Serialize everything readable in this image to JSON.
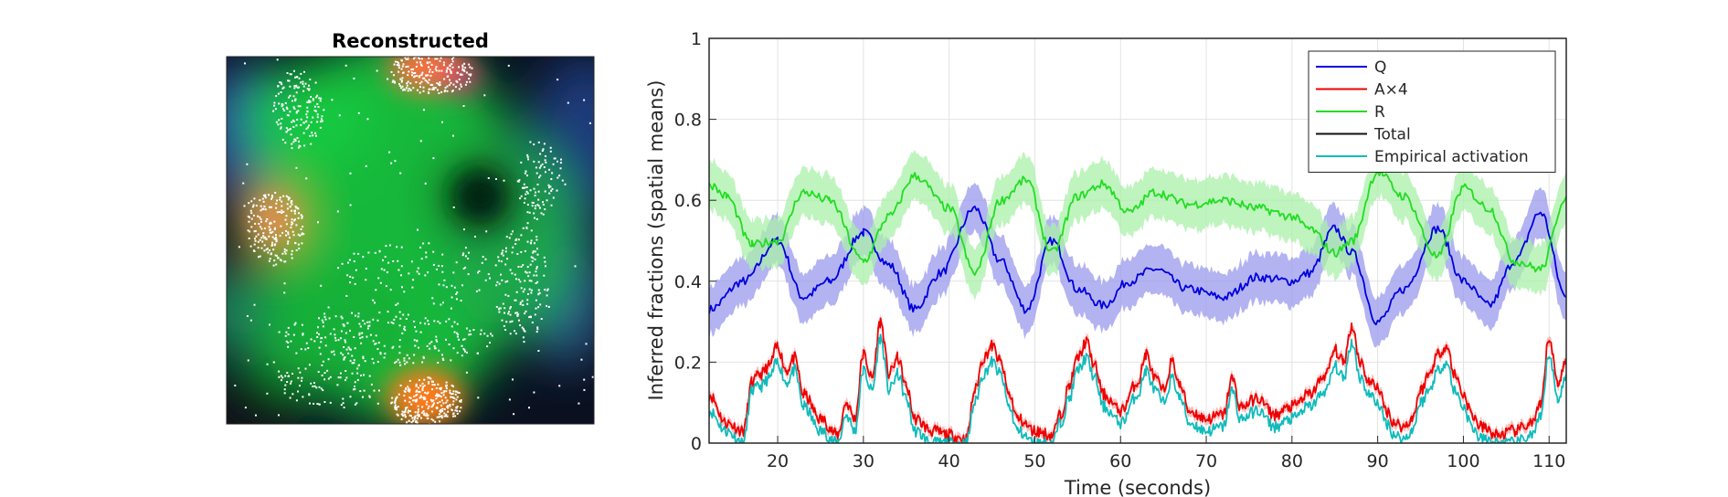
{
  "panel_left": {
    "title": "Reconstructed"
  },
  "chart_data": {
    "type": "line",
    "xlabel": "Time (seconds)",
    "ylabel": "Inferred fractions (spatial means)",
    "xlim": [
      12,
      112
    ],
    "ylim": [
      0,
      1
    ],
    "xticks": [
      20,
      30,
      40,
      50,
      60,
      70,
      80,
      90,
      100,
      110
    ],
    "yticks": [
      0,
      0.2,
      0.4,
      0.6,
      0.8,
      1
    ],
    "xtick_labels": [
      "20",
      "30",
      "40",
      "50",
      "60",
      "70",
      "80",
      "90",
      "100",
      "110"
    ],
    "ytick_labels": [
      "0",
      "0.2",
      "0.4",
      "0.6",
      "0.8",
      "1"
    ],
    "grid": true,
    "legend_position": "top-right",
    "series": [
      {
        "name": "Q",
        "color": "#0000dd",
        "band_color": "#9999ee",
        "band_halfwidth": 0.06,
        "x": [
          12,
          16,
          20,
          23,
          26,
          30,
          33,
          36,
          39,
          43,
          46,
          49,
          52,
          55,
          58,
          61,
          64,
          68,
          72,
          76,
          80,
          82,
          85,
          87,
          90,
          93,
          97,
          100,
          103,
          106,
          109,
          112
        ],
        "y": [
          0.33,
          0.4,
          0.5,
          0.36,
          0.4,
          0.52,
          0.44,
          0.33,
          0.42,
          0.58,
          0.45,
          0.33,
          0.5,
          0.38,
          0.34,
          0.4,
          0.43,
          0.38,
          0.36,
          0.41,
          0.4,
          0.42,
          0.53,
          0.47,
          0.3,
          0.38,
          0.53,
          0.4,
          0.34,
          0.45,
          0.57,
          0.36
        ]
      },
      {
        "name": "A×4",
        "color": "#ee0000",
        "x": [
          12,
          14,
          16,
          17,
          18,
          19,
          20,
          21,
          22,
          23,
          25,
          27,
          28,
          29,
          30,
          31,
          32,
          33,
          34,
          35,
          36,
          38,
          40,
          42,
          43,
          44,
          45,
          46,
          47,
          48,
          50,
          52,
          53,
          54,
          55,
          56,
          57,
          58,
          60,
          62,
          63,
          64,
          65,
          66,
          67,
          68,
          70,
          72,
          73,
          74,
          76,
          78,
          80,
          82,
          84,
          85,
          86,
          87,
          88,
          89,
          90,
          91,
          92,
          93,
          94,
          95,
          96,
          97,
          98,
          99,
          100,
          101,
          102,
          104,
          106,
          108,
          109,
          110,
          111,
          112
        ],
        "y": [
          0.12,
          0.05,
          0.03,
          0.15,
          0.17,
          0.19,
          0.24,
          0.18,
          0.21,
          0.12,
          0.06,
          0.02,
          0.1,
          0.06,
          0.22,
          0.16,
          0.3,
          0.17,
          0.21,
          0.14,
          0.06,
          0.03,
          0.02,
          0.01,
          0.13,
          0.21,
          0.24,
          0.2,
          0.12,
          0.06,
          0.03,
          0.02,
          0.07,
          0.14,
          0.21,
          0.25,
          0.19,
          0.12,
          0.08,
          0.15,
          0.22,
          0.16,
          0.13,
          0.2,
          0.14,
          0.08,
          0.06,
          0.07,
          0.16,
          0.09,
          0.11,
          0.07,
          0.09,
          0.12,
          0.17,
          0.23,
          0.2,
          0.29,
          0.2,
          0.15,
          0.14,
          0.08,
          0.05,
          0.04,
          0.06,
          0.13,
          0.17,
          0.22,
          0.24,
          0.17,
          0.12,
          0.07,
          0.04,
          0.02,
          0.03,
          0.05,
          0.09,
          0.26,
          0.15,
          0.2
        ]
      },
      {
        "name": "R",
        "color": "#22dd22",
        "band_color": "#aaf0aa",
        "band_halfwidth": 0.06,
        "x": [
          12,
          14,
          17,
          20,
          23,
          26,
          30,
          33,
          36,
          40,
          43,
          46,
          49,
          52,
          55,
          58,
          61,
          64,
          68,
          72,
          76,
          80,
          82,
          85,
          87,
          90,
          93,
          97,
          100,
          103,
          106,
          109,
          112
        ],
        "y": [
          0.64,
          0.61,
          0.49,
          0.5,
          0.62,
          0.6,
          0.45,
          0.56,
          0.66,
          0.58,
          0.42,
          0.6,
          0.65,
          0.47,
          0.61,
          0.64,
          0.57,
          0.62,
          0.59,
          0.6,
          0.58,
          0.56,
          0.53,
          0.47,
          0.5,
          0.67,
          0.61,
          0.46,
          0.63,
          0.58,
          0.45,
          0.43,
          0.61
        ]
      },
      {
        "name": "Total",
        "color": "#111111",
        "x": [],
        "y": []
      },
      {
        "name": "Empirical activation",
        "color": "#11bbbb",
        "x": [
          12,
          14,
          16,
          17,
          18,
          19,
          20,
          21,
          22,
          23,
          25,
          27,
          28,
          29,
          30,
          31,
          32,
          33,
          34,
          35,
          36,
          38,
          40,
          42,
          43,
          44,
          45,
          46,
          47,
          48,
          50,
          52,
          53,
          54,
          55,
          56,
          57,
          58,
          60,
          62,
          63,
          64,
          65,
          66,
          67,
          68,
          70,
          72,
          73,
          74,
          76,
          78,
          80,
          82,
          84,
          85,
          86,
          87,
          88,
          89,
          90,
          91,
          92,
          93,
          94,
          95,
          96,
          97,
          98,
          99,
          100,
          101,
          102,
          104,
          106,
          108,
          109,
          110,
          111,
          112
        ],
        "y": [
          0.08,
          0.03,
          0.0,
          0.13,
          0.14,
          0.16,
          0.2,
          0.15,
          0.18,
          0.09,
          0.03,
          0.0,
          0.07,
          0.03,
          0.18,
          0.13,
          0.26,
          0.13,
          0.17,
          0.11,
          0.03,
          0.0,
          0.0,
          0.0,
          0.1,
          0.17,
          0.2,
          0.17,
          0.09,
          0.03,
          0.0,
          0.0,
          0.05,
          0.11,
          0.18,
          0.21,
          0.16,
          0.09,
          0.05,
          0.12,
          0.18,
          0.13,
          0.1,
          0.16,
          0.11,
          0.05,
          0.03,
          0.04,
          0.13,
          0.06,
          0.08,
          0.04,
          0.06,
          0.09,
          0.13,
          0.19,
          0.16,
          0.25,
          0.16,
          0.12,
          0.1,
          0.05,
          0.02,
          0.01,
          0.03,
          0.1,
          0.13,
          0.18,
          0.2,
          0.13,
          0.09,
          0.04,
          0.01,
          0.0,
          0.0,
          0.02,
          0.06,
          0.22,
          0.11,
          0.16
        ]
      }
    ]
  }
}
